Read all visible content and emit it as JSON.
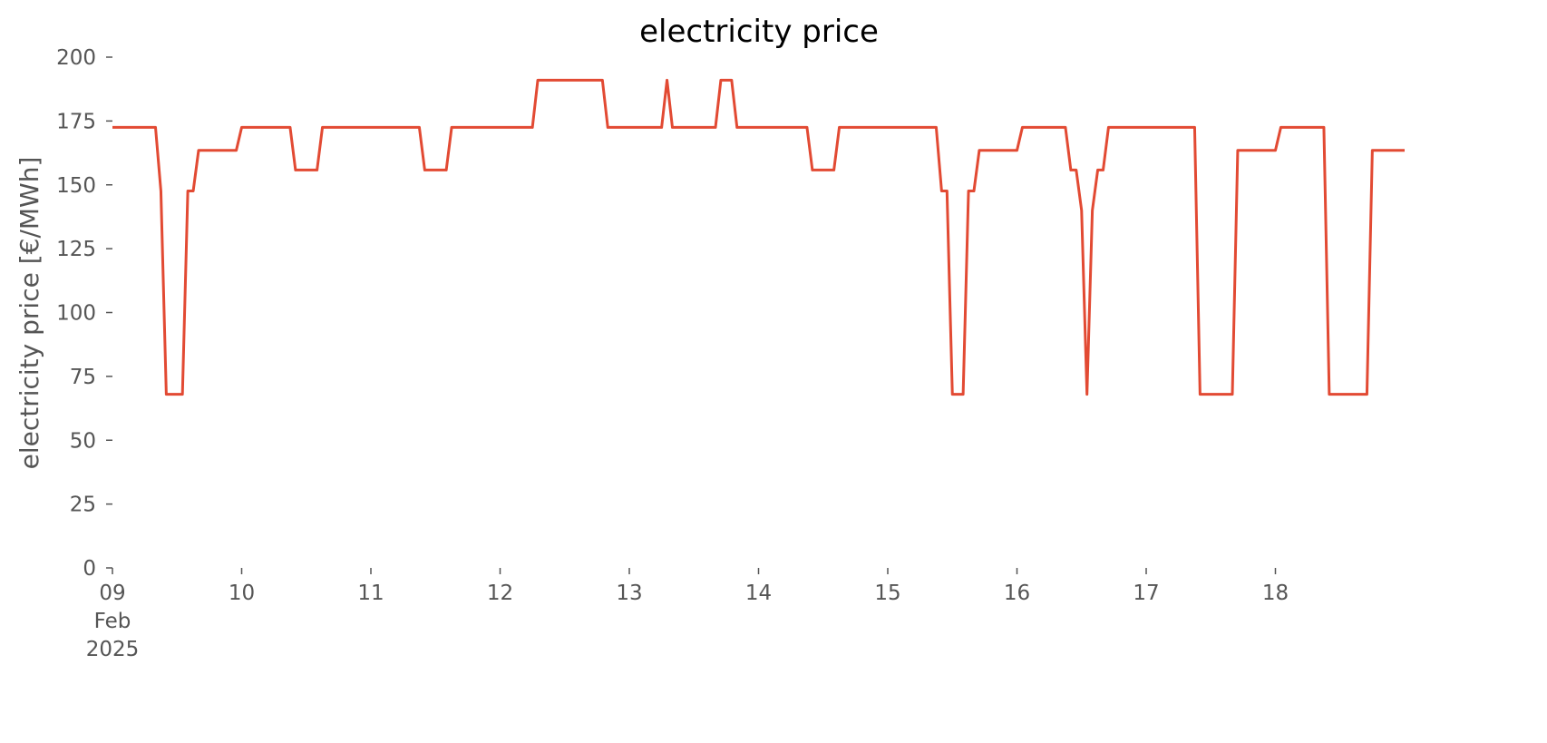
{
  "chart_data": {
    "type": "line",
    "title": "electricity price",
    "y_label": "electricity price [€/MWh]",
    "x": [
      9,
      9.3333,
      9.375,
      9.4167,
      9.5417,
      9.5833,
      9.625,
      9.6667,
      9.9583,
      10,
      10.375,
      10.4167,
      10.5833,
      10.625,
      11.375,
      11.4167,
      11.5833,
      11.625,
      12.25,
      12.2917,
      12.7917,
      12.8333,
      13.25,
      13.2917,
      13.3333,
      13.6667,
      13.7083,
      13.7917,
      13.8333,
      14.375,
      14.4167,
      14.5833,
      14.625,
      15.375,
      15.4167,
      15.4583,
      15.5,
      15.5833,
      15.625,
      15.6667,
      15.7083,
      16,
      16.0417,
      16.375,
      16.4167,
      16.4583,
      16.5,
      16.5417,
      16.5833,
      16.625,
      16.6667,
      16.7083,
      17.375,
      17.4167,
      17.6667,
      17.7083,
      18,
      18.0417,
      18.375,
      18.4167,
      18.7083,
      18.75,
      19
    ],
    "series": [
      {
        "name": "electricity price",
        "color": "#e24a33",
        "values": [
          172.5,
          172.5,
          147.6,
          68,
          68,
          147.6,
          147.6,
          163.5,
          163.5,
          172.5,
          172.5,
          155.8,
          155.8,
          172.5,
          172.5,
          155.8,
          155.8,
          172.5,
          172.5,
          191,
          191,
          172.5,
          172.5,
          191,
          172.5,
          172.5,
          191,
          191,
          172.5,
          172.5,
          155.8,
          155.8,
          172.5,
          172.5,
          147.6,
          147.6,
          68,
          68,
          147.6,
          147.6,
          163.5,
          163.5,
          172.5,
          172.5,
          155.8,
          155.8,
          140,
          68,
          140,
          155.8,
          155.8,
          172.5,
          172.5,
          68,
          68,
          163.5,
          163.5,
          172.5,
          172.5,
          68,
          68,
          163.5,
          163.5
        ]
      }
    ],
    "xlim": [
      9,
      19
    ],
    "xticks": [
      {
        "value": 9,
        "label": "09\nFeb\n2025"
      },
      10,
      11,
      12,
      13,
      14,
      15,
      16,
      17,
      18
    ],
    "ylim": [
      0,
      200
    ],
    "yticks": [
      0,
      25,
      50,
      75,
      100,
      125,
      150,
      175,
      200
    ],
    "grid": false
  }
}
